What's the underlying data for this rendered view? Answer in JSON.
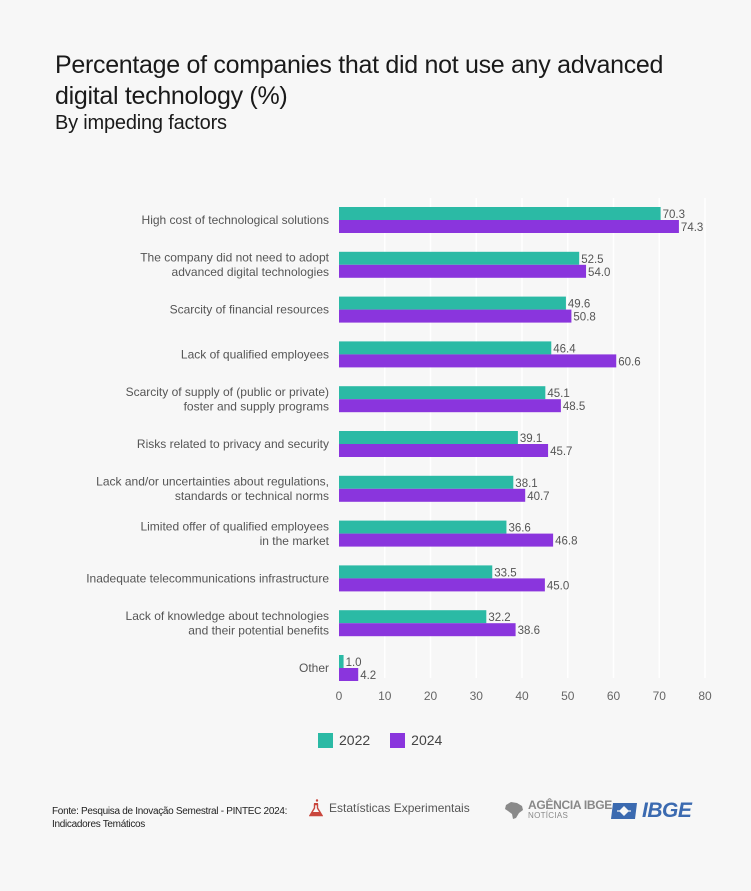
{
  "header": {
    "title": "Percentage of companies that did not use any advanced digital technology (%)",
    "subtitle": "By impeding factors"
  },
  "colors": {
    "series_2022": "#2bbaa5",
    "series_2024": "#8a35dd",
    "background": "#f7f7f7",
    "gridline": "#ffffff"
  },
  "chart_data": {
    "type": "bar",
    "orientation": "horizontal",
    "title": "Percentage of companies that did not use any advanced digital technology (%)",
    "subtitle": "By impeding factors",
    "xlabel": "",
    "ylabel": "",
    "xlim": [
      0,
      80
    ],
    "xticks": [
      0,
      10,
      20,
      30,
      40,
      50,
      60,
      70,
      80
    ],
    "grid": true,
    "legend_position": "bottom",
    "categories": [
      [
        "High cost of technological solutions"
      ],
      [
        "The company did not need to adopt",
        "advanced digital technologies"
      ],
      [
        "Scarcity of financial resources"
      ],
      [
        "Lack of qualified employees"
      ],
      [
        "Scarcity of supply of (public or private)",
        "foster and supply programs"
      ],
      [
        "Risks related to privacy and security"
      ],
      [
        "Lack and/or uncertainties about regulations,",
        "standards or technical norms"
      ],
      [
        "Limited offer of qualified employees",
        "in the market"
      ],
      [
        "Inadequate telecommunications infrastructure"
      ],
      [
        "Lack of knowledge about technologies",
        "and their potential benefits"
      ],
      [
        "Other"
      ]
    ],
    "series": [
      {
        "name": "2022",
        "values": [
          70.3,
          52.5,
          49.6,
          46.4,
          45.1,
          39.1,
          38.1,
          36.6,
          33.5,
          32.2,
          1.0
        ]
      },
      {
        "name": "2024",
        "values": [
          74.3,
          54.0,
          50.8,
          60.6,
          48.5,
          45.7,
          40.7,
          46.8,
          45.0,
          38.6,
          4.2
        ]
      }
    ]
  },
  "legend": [
    {
      "label": "2022"
    },
    {
      "label": "2024"
    }
  ],
  "footer": {
    "source_line1": "Fonte: Pesquisa de Inovação Semestral - PINTEC 2024:",
    "source_line2": "Indicadores Temáticos",
    "experimental_label": "Estatísticas Experimentais",
    "experimental_icon": "flask-icon",
    "agencia_name": "AGÊNCIA IBGE",
    "agencia_sub": "NOTÍCIAS",
    "ibge_logo_text": "IBGE"
  }
}
